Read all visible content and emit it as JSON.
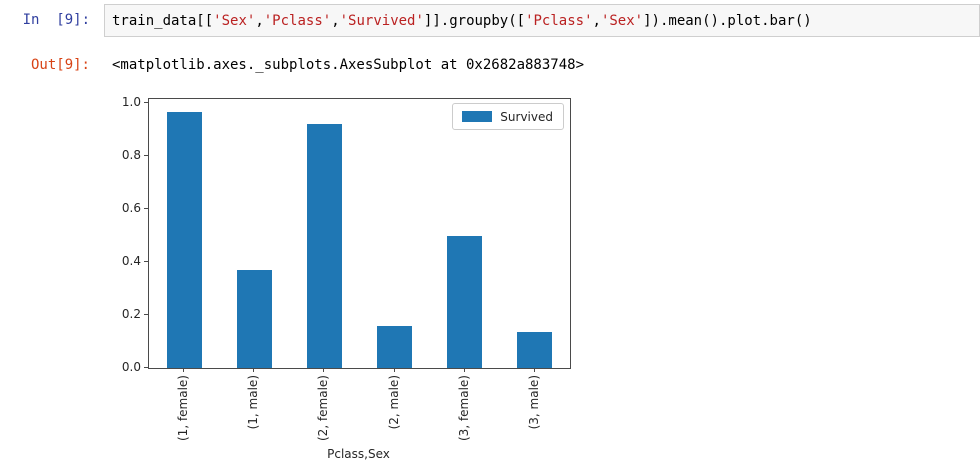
{
  "notebook": {
    "input_cell": {
      "prompt": "In  [9]:",
      "code_segments": [
        {
          "text": "train_data[[",
          "type": "code"
        },
        {
          "text": "'Sex'",
          "type": "string"
        },
        {
          "text": ",",
          "type": "code"
        },
        {
          "text": "'Pclass'",
          "type": "string"
        },
        {
          "text": ",",
          "type": "code"
        },
        {
          "text": "'Survived'",
          "type": "string"
        },
        {
          "text": "]].groupby([",
          "type": "code"
        },
        {
          "text": "'Pclass'",
          "type": "string"
        },
        {
          "text": ",",
          "type": "code"
        },
        {
          "text": "'Sex'",
          "type": "string"
        },
        {
          "text": "]).mean().plot.bar()",
          "type": "code"
        }
      ]
    },
    "output_cell": {
      "prompt": "Out[9]:",
      "text": "<matplotlib.axes._subplots.AxesSubplot at 0x2682a883748>"
    }
  },
  "colors": {
    "in_prompt": "#303F9F",
    "out_prompt": "#D84315",
    "code_string": "#BA2121",
    "code_default": "#000000",
    "bar": "#1f77b4",
    "input_bg": "#f7f7f7",
    "input_border": "#cfcfcf",
    "axis_text": "#262626"
  },
  "chart_data": {
    "type": "bar",
    "title": "",
    "xlabel": "Pclass,Sex",
    "ylabel": "",
    "categories": [
      "(1, female)",
      "(1, male)",
      "(2, female)",
      "(2, male)",
      "(3, female)",
      "(3, male)"
    ],
    "values": [
      0.968,
      0.369,
      0.921,
      0.157,
      0.5,
      0.135
    ],
    "series_name": "Survived",
    "yticks": [
      "0.0",
      "0.2",
      "0.4",
      "0.6",
      "0.8",
      "1.0"
    ],
    "ylim": [
      0,
      1.0165
    ],
    "grid": false,
    "legend": {
      "label": "Survived",
      "position": "upper right"
    },
    "bar_color": "#1f77b4"
  }
}
